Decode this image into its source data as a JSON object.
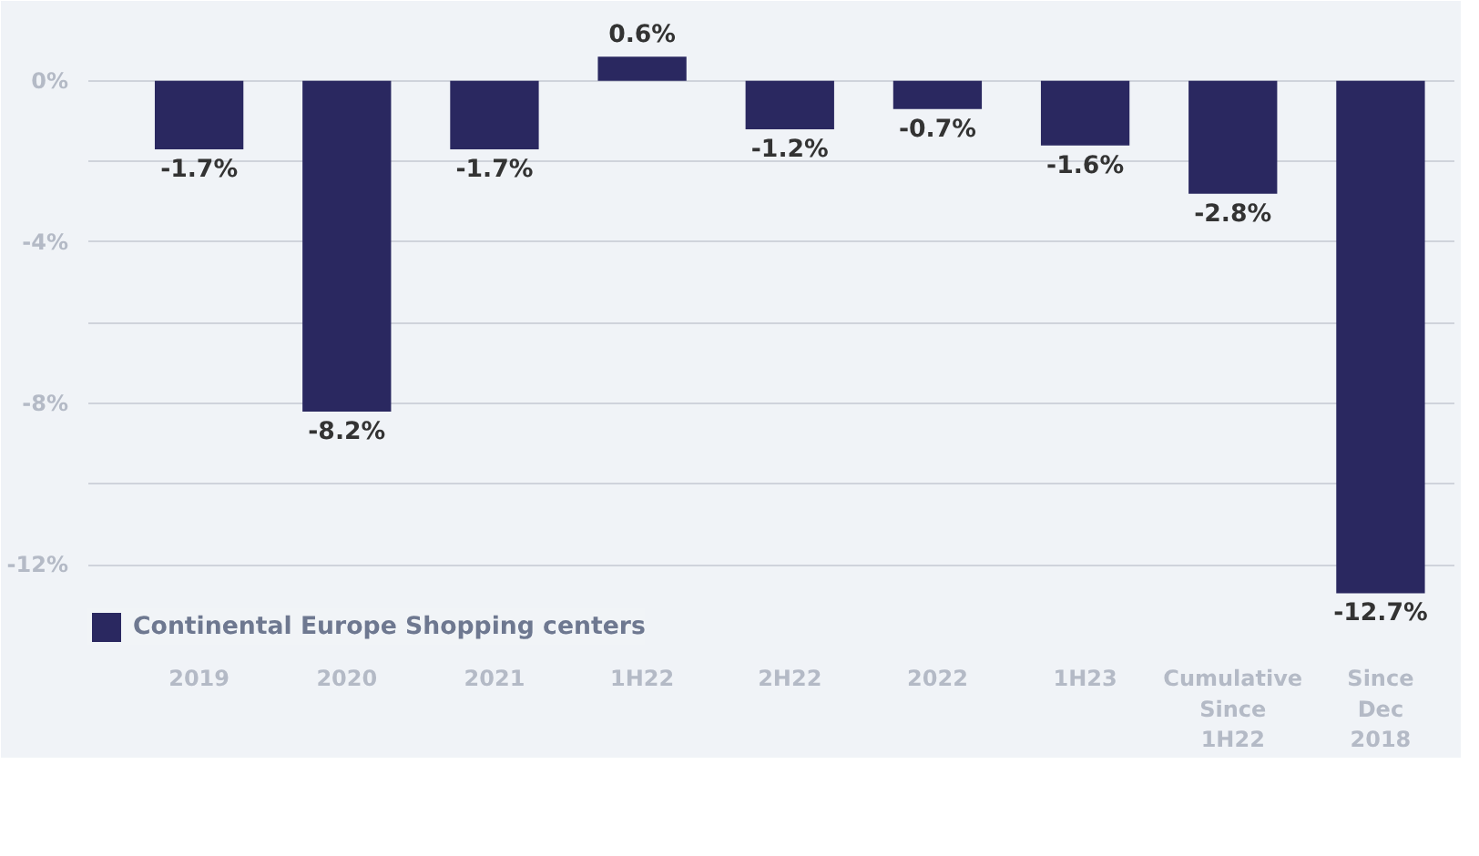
{
  "chart_data": {
    "type": "bar",
    "categories": [
      "2019",
      "2020",
      "2021",
      "1H22",
      "2H22",
      "2022",
      "1H23",
      "Cumulative\nSince\n1H22",
      "Since\nDec\n2018"
    ],
    "series": [
      {
        "name": "Continental Europe Shopping centers",
        "color": "#2a2860",
        "values": [
          -1.7,
          -8.2,
          -1.7,
          0.6,
          -1.2,
          -0.7,
          -1.6,
          -2.8,
          -12.7
        ],
        "value_labels": [
          "-1.7%",
          "-8.2%",
          "-1.7%",
          "0.6%",
          "-1.2%",
          "-0.7%",
          "-1.6%",
          "-2.8%",
          "-12.7%"
        ]
      }
    ],
    "ylim": [
      -14,
      1.8
    ],
    "yticks": [
      {
        "value": 0,
        "label": "0%"
      },
      {
        "value": -2,
        "label": null
      },
      {
        "value": -4,
        "label": "-4%"
      },
      {
        "value": -6,
        "label": null
      },
      {
        "value": -8,
        "label": "-8%"
      },
      {
        "value": -10,
        "label": null
      },
      {
        "value": -12,
        "label": "-12%"
      },
      {
        "value": -14,
        "label": null
      }
    ],
    "grid": "y",
    "legend": "bottom left"
  }
}
